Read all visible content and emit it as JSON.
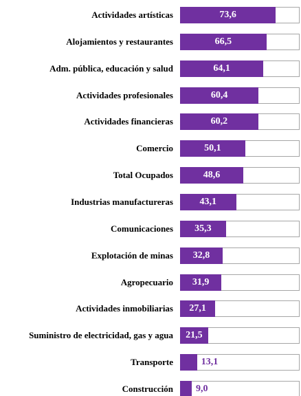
{
  "chart_data": {
    "type": "bar",
    "orientation": "horizontal",
    "color": "#7030a0",
    "track_color": "#a6a6a6",
    "categories": [
      "Actividades artísticas",
      "Alojamientos y restaurantes",
      "Adm. pública, educación y salud",
      "Actividades profesionales",
      "Actividades financieras",
      "Comercio",
      "Total Ocupados",
      "Industrias manufactureras",
      "Comunicaciones",
      "Explotación de minas",
      "Agropecuario",
      "Actividades inmobiliarias",
      "Suministro de electricidad, gas y agua",
      "Transporte",
      "Construcción"
    ],
    "values": [
      73.6,
      66.5,
      64.1,
      60.4,
      60.2,
      50.1,
      48.6,
      43.1,
      35.3,
      32.8,
      31.9,
      27.1,
      21.5,
      13.1,
      9.0
    ],
    "value_labels": [
      "73,6",
      "66,5",
      "64,1",
      "60,4",
      "60,2",
      "50,1",
      "48,6",
      "43,1",
      "35,3",
      "32,8",
      "31,9",
      "27,1",
      "21,5",
      "13,1",
      "9,0"
    ],
    "xlim": [
      0,
      92
    ]
  }
}
